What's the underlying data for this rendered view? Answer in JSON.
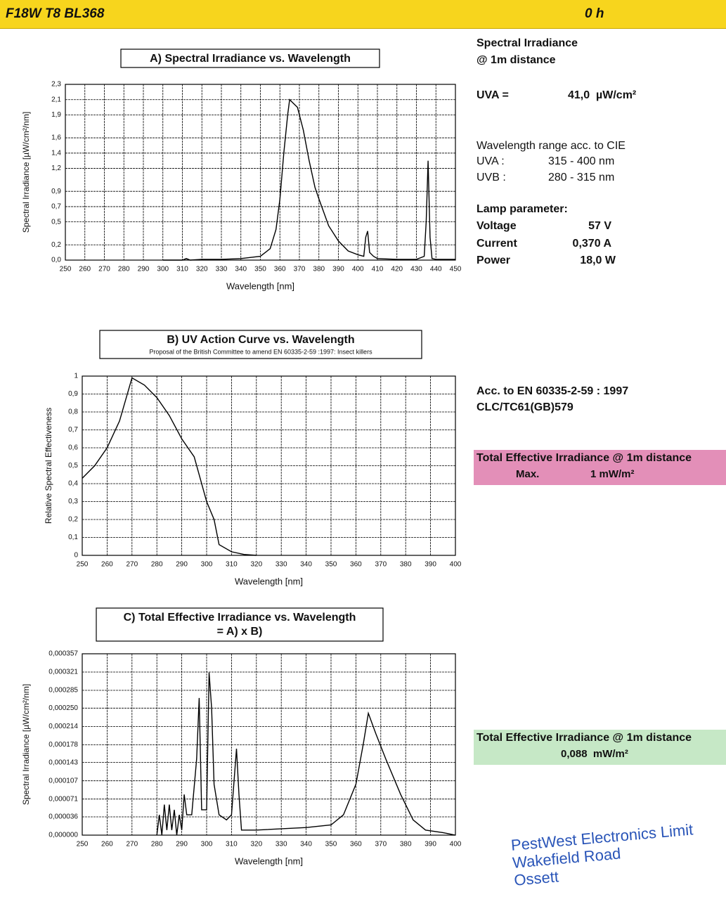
{
  "header": {
    "title": "F18W T8 BL368",
    "hours": "0 h"
  },
  "chart_data": [
    {
      "type": "line",
      "title": "A) Spectral Irradiance  vs.  Wavelength",
      "x_label": "Wavelength  [nm]",
      "y_label": "Spectral Irradiance [µW/cm²/nm]",
      "color": "#000000",
      "grid": true,
      "x": [
        300,
        310,
        312,
        314,
        320,
        330,
        340,
        350,
        355,
        358,
        360,
        362,
        364,
        365,
        367,
        369,
        370,
        372,
        375,
        378,
        380,
        385,
        390,
        395,
        400,
        403,
        404,
        405,
        406,
        408,
        410,
        420,
        430,
        434,
        435,
        436,
        437,
        438,
        440,
        450
      ],
      "values": [
        0.0,
        0.0,
        0.02,
        0.0,
        0.01,
        0.01,
        0.02,
        0.05,
        0.15,
        0.4,
        0.8,
        1.4,
        1.9,
        2.1,
        2.05,
        2.0,
        1.9,
        1.7,
        1.3,
        0.95,
        0.8,
        0.45,
        0.25,
        0.12,
        0.07,
        0.05,
        0.3,
        0.38,
        0.1,
        0.05,
        0.02,
        0.01,
        0.01,
        0.05,
        0.5,
        1.3,
        0.3,
        0.02,
        0.01,
        0.01
      ],
      "xlim": [
        250,
        450
      ],
      "ylim": [
        0,
        2.3
      ],
      "xticks": [
        250,
        260,
        270,
        280,
        290,
        300,
        310,
        320,
        330,
        340,
        350,
        360,
        370,
        380,
        390,
        400,
        410,
        420,
        430,
        440,
        450
      ],
      "yticks": [
        {
          "value": 0,
          "label": "0,0"
        },
        {
          "value": 0.2,
          "label": "0,2"
        },
        {
          "value": 0.5,
          "label": "0,5"
        },
        {
          "value": 0.7,
          "label": "0,7"
        },
        {
          "value": 0.9,
          "label": "0,9"
        },
        {
          "value": 1.2,
          "label": "1,2"
        },
        {
          "value": 1.4,
          "label": "1,4"
        },
        {
          "value": 1.6,
          "label": "1,6"
        },
        {
          "value": 1.9,
          "label": "1,9"
        },
        {
          "value": 2.1,
          "label": "2,1"
        },
        {
          "value": 2.3,
          "label": "2,3"
        }
      ]
    },
    {
      "type": "line",
      "title": "B)  UV Action Curve  vs.  Wavelength",
      "subtitle": "Proposal of the British Committee to amend EN 60335-2-59 :1997: Insect killers",
      "x_label": "Wavelength  [nm]",
      "y_label": "Relative Spectral Effectiveness",
      "color": "#000000",
      "grid": true,
      "x": [
        250,
        255,
        260,
        265,
        270,
        275,
        280,
        285,
        290,
        295,
        297,
        300,
        303,
        305,
        310,
        315,
        320
      ],
      "values": [
        0.43,
        0.5,
        0.6,
        0.75,
        0.99,
        0.95,
        0.88,
        0.78,
        0.65,
        0.55,
        0.45,
        0.3,
        0.2,
        0.06,
        0.02,
        0.005,
        0
      ],
      "xlim": [
        250,
        400
      ],
      "ylim": [
        0,
        1
      ],
      "xticks": [
        250,
        260,
        270,
        280,
        290,
        300,
        310,
        320,
        330,
        340,
        350,
        360,
        370,
        380,
        390,
        400
      ],
      "yticks": [
        0,
        {
          "value": 0.1,
          "label": "0,1"
        },
        {
          "value": 0.2,
          "label": "0,2"
        },
        {
          "value": 0.3,
          "label": "0,3"
        },
        {
          "value": 0.4,
          "label": "0,4"
        },
        {
          "value": 0.5,
          "label": "0,5"
        },
        {
          "value": 0.6,
          "label": "0,6"
        },
        {
          "value": 0.7,
          "label": "0,7"
        },
        {
          "value": 0.8,
          "label": "0,8"
        },
        {
          "value": 0.9,
          "label": "0,9"
        },
        1
      ]
    },
    {
      "type": "line",
      "title": "C) Total Effective Irradiance  vs.  Wavelength",
      "subtitle": "= A)  x  B)",
      "x_label": "Wavelength  [nm]",
      "y_label": "Spectral Irradiance  [µW/cm²/nm]",
      "color": "#000000",
      "grid": true,
      "x": [
        280,
        281,
        282,
        283,
        284,
        285,
        286,
        287,
        288,
        289,
        290,
        291,
        292,
        294,
        296,
        297,
        298,
        300,
        301,
        302,
        303,
        305,
        308,
        310,
        312,
        313,
        314,
        320,
        340,
        350,
        355,
        360,
        363,
        365,
        368,
        372,
        378,
        383,
        388,
        395,
        400
      ],
      "values": [
        0,
        4e-05,
        0,
        6e-05,
        1e-05,
        6e-05,
        1e-05,
        5e-05,
        0,
        4e-05,
        1e-05,
        8e-05,
        4e-05,
        4e-05,
        0.00015,
        0.00027,
        5e-05,
        5e-05,
        0.00032,
        0.00025,
        0.0001,
        4e-05,
        3e-05,
        4e-05,
        0.00017,
        8e-05,
        1e-05,
        1e-05,
        1.5e-05,
        2e-05,
        4e-05,
        0.0001,
        0.00018,
        0.00024,
        0.0002,
        0.00015,
        8e-05,
        3e-05,
        1e-05,
        5e-06,
        0
      ],
      "xlim": [
        250,
        400
      ],
      "ylim": [
        0,
        0.000357
      ],
      "xticks": [
        250,
        260,
        270,
        280,
        290,
        300,
        310,
        320,
        330,
        340,
        350,
        360,
        370,
        380,
        390,
        400
      ],
      "yticks": [
        {
          "value": 0,
          "label": "0,000000"
        },
        {
          "value": 3.6e-05,
          "label": "0,000036"
        },
        {
          "value": 7.1e-05,
          "label": "0,000071"
        },
        {
          "value": 0.000107,
          "label": "0,000107"
        },
        {
          "value": 0.000143,
          "label": "0,000143"
        },
        {
          "value": 0.000178,
          "label": "0,000178"
        },
        {
          "value": 0.000214,
          "label": "0,000214"
        },
        {
          "value": 0.00025,
          "label": "0,000250"
        },
        {
          "value": 0.000285,
          "label": "0,000285"
        },
        {
          "value": 0.000321,
          "label": "0,000321"
        },
        {
          "value": 0.000357,
          "label": "0,000357"
        }
      ]
    }
  ],
  "panel": {
    "irradiance_heading": [
      "Spectral Irradiance",
      "@ 1m distance"
    ],
    "uva_label": "UVA =",
    "uva_value": "41,0  µW/cm²",
    "range_heading": "Wavelength range acc. to CIE",
    "ranges": [
      [
        "UVA :",
        "315 - 400 nm"
      ],
      [
        "UVB :",
        "280 - 315 nm"
      ]
    ],
    "lamp_heading": "Lamp parameter:",
    "lamp": [
      [
        "Voltage",
        "57 V"
      ],
      [
        "Current",
        "0,370 A"
      ],
      [
        "Power",
        "18,0 W"
      ]
    ],
    "standard": [
      "Acc. to EN 60335-2-59 : 1997",
      "CLC/TC61(GB)579"
    ],
    "max_box": {
      "title": "Total Effective Irradiance @ 1m distance",
      "label": "Max.",
      "value": "1 mW/m²"
    },
    "result_box": {
      "title": "Total Effective Irradiance @ 1m distance",
      "value": "0,088  mW/m²"
    }
  },
  "stamp": [
    "PestWest Electronics Limit",
    "Wakefield Road",
    "Ossett"
  ]
}
